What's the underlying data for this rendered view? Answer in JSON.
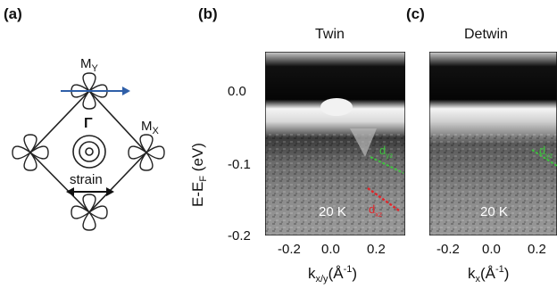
{
  "panel_a": {
    "label": "(a)",
    "gamma": "Γ",
    "my": "M",
    "my_sub": "Y",
    "mx": "M",
    "mx_sub": "X",
    "strain": "strain"
  },
  "panel_b": {
    "label": "(b)",
    "title": "Twin",
    "temp": "20 K",
    "dyz": "d",
    "dyz_sub": "yz",
    "dxz": "d",
    "dxz_sub": "xz",
    "xlabel_main": "k",
    "xlabel_sub": "x/y",
    "xlabel_unit_pre": "(Å",
    "xlabel_unit_sup": "-1",
    "xlabel_unit_post": ")"
  },
  "panel_c": {
    "label": "(c)",
    "title": "Detwin",
    "temp": "20 K",
    "dyz": "d",
    "dyz_sub": "yz",
    "xlabel_main": "k",
    "xlabel_sub": "x",
    "xlabel_unit_pre": "(Å",
    "xlabel_unit_sup": "-1",
    "xlabel_unit_post": ")"
  },
  "yaxis": {
    "label_pre": "E-E",
    "label_sub": "F",
    "label_post": " (eV)",
    "ticks": [
      "0.0",
      "-0.1",
      "-0.2"
    ]
  },
  "xaxis_b_ticks": [
    "-0.2",
    "0.0",
    "0.2"
  ],
  "xaxis_c_ticks": [
    "-0.2",
    "0.0",
    "0.2"
  ],
  "colors": {
    "arrow": "#2f5fa8",
    "dyz": "#3ec23e",
    "dxz": "#e0262b"
  }
}
